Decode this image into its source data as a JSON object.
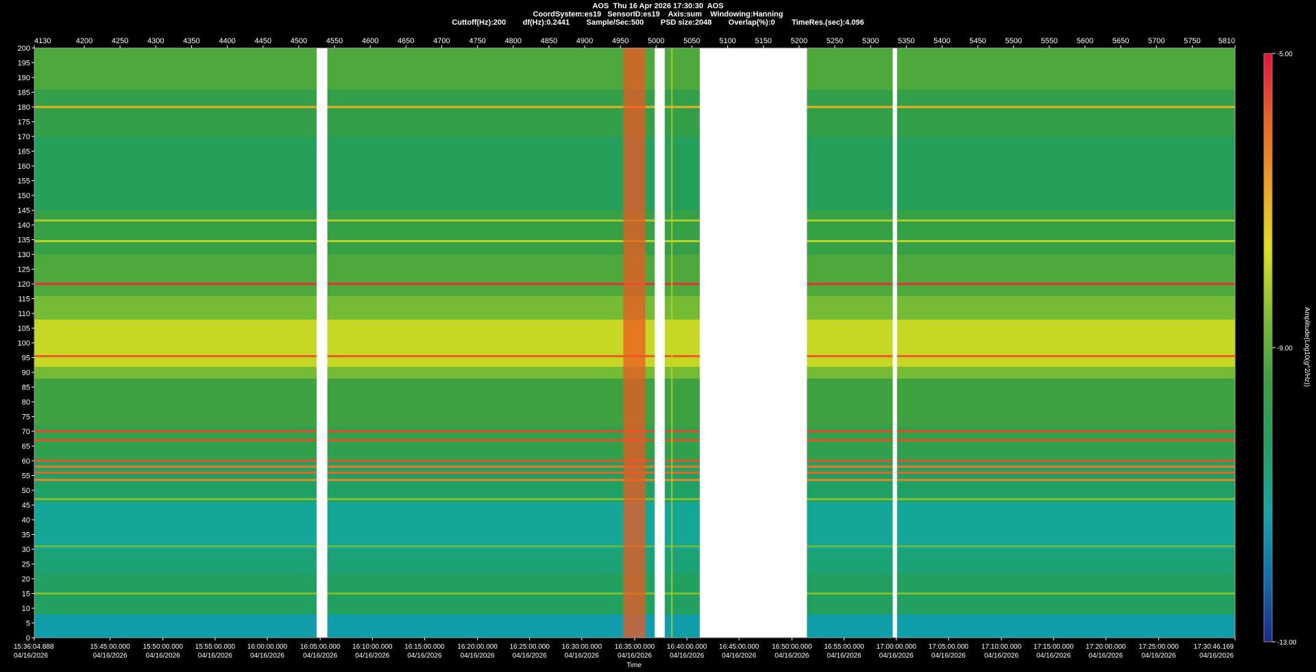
{
  "header": {
    "line1": "AOS  Thu 16 Apr 2026 17:30:30  AOS",
    "line2": "CoordSystem:es19   SensorID:es19    Axis:sum    Windowing:Hanning",
    "line3": "Cuttoff(Hz):200        df(Hz):0.2441        Sample/Sec:500        PSD size:2048        Overlap(%):0        TimeRes.(sec):4.096"
  },
  "colors": {
    "background": "#000000",
    "gap": "#ffffff",
    "scale": [
      "#1a2a8c",
      "#1070b0",
      "#10a8a8",
      "#20a060",
      "#3aa040",
      "#80c030",
      "#e0e020",
      "#f0a020",
      "#f06020",
      "#e81040"
    ]
  },
  "chart_data": {
    "type": "heatmap",
    "xlabel": "Time",
    "ylabel": "",
    "ylim": [
      0,
      200
    ],
    "y_ticks": [
      0,
      5,
      10,
      15,
      20,
      25,
      30,
      35,
      40,
      45,
      50,
      55,
      60,
      65,
      70,
      75,
      80,
      85,
      90,
      95,
      100,
      105,
      110,
      115,
      120,
      125,
      130,
      135,
      140,
      145,
      150,
      155,
      160,
      165,
      170,
      175,
      180,
      185,
      190,
      195,
      200
    ],
    "index_range": [
      4130,
      5810
    ],
    "top_ticks": [
      4130,
      4200,
      4250,
      4300,
      4350,
      4400,
      4450,
      4500,
      4550,
      4600,
      4650,
      4700,
      4750,
      4800,
      4850,
      4900,
      4950,
      5000,
      5050,
      5100,
      5150,
      5200,
      5250,
      5300,
      5350,
      5400,
      5450,
      5500,
      5550,
      5600,
      5650,
      5700,
      5750,
      5810
    ],
    "time_ticks": [
      {
        "index": 4130,
        "time": "15:36:04.888",
        "date": "04/16/2026"
      },
      {
        "index": 4236,
        "time": "15:45:00.000",
        "date": "04/16/2026"
      },
      {
        "index": 4310,
        "time": "15:50:00.000",
        "date": "04/16/2026"
      },
      {
        "index": 4383,
        "time": "15:55:00.000",
        "date": "04/16/2026"
      },
      {
        "index": 4456,
        "time": "16:00:00.000",
        "date": "04/16/2026"
      },
      {
        "index": 4530,
        "time": "16:05:00.000",
        "date": "04/16/2026"
      },
      {
        "index": 4603,
        "time": "16:10:00.000",
        "date": "04/16/2026"
      },
      {
        "index": 4676,
        "time": "16:15:00.000",
        "date": "04/16/2026"
      },
      {
        "index": 4750,
        "time": "16:20:00.000",
        "date": "04/16/2026"
      },
      {
        "index": 4823,
        "time": "16:25:00.000",
        "date": "04/16/2026"
      },
      {
        "index": 4896,
        "time": "16:30:00.000",
        "date": "04/16/2026"
      },
      {
        "index": 4970,
        "time": "16:35:00.000",
        "date": "04/16/2026"
      },
      {
        "index": 5043,
        "time": "16:40:00.000",
        "date": "04/16/2026"
      },
      {
        "index": 5116,
        "time": "16:45:00.000",
        "date": "04/16/2026"
      },
      {
        "index": 5190,
        "time": "16:50:00.000",
        "date": "04/16/2026"
      },
      {
        "index": 5263,
        "time": "16:55:00.000",
        "date": "04/16/2026"
      },
      {
        "index": 5336,
        "time": "17:00:00.000",
        "date": "04/16/2026"
      },
      {
        "index": 5409,
        "time": "17:05:00.000",
        "date": "04/16/2026"
      },
      {
        "index": 5483,
        "time": "17:10:00.000",
        "date": "04/16/2026"
      },
      {
        "index": 5556,
        "time": "17:15:00.000",
        "date": "04/16/2026"
      },
      {
        "index": 5629,
        "time": "17:20:00.000",
        "date": "04/16/2026"
      },
      {
        "index": 5703,
        "time": "17:25:00.000",
        "date": "04/16/2026"
      },
      {
        "index": 5810,
        "time": "17:30:46.169",
        "date": "04/16/2026"
      }
    ],
    "gaps": [
      [
        4525,
        4540
      ],
      [
        4998,
        5012
      ],
      [
        5061,
        5211
      ],
      [
        5331,
        5337
      ]
    ],
    "colorbar": {
      "label": "Amplitude(Log10(g^2/Hz))",
      "range": [
        -13,
        -5
      ],
      "ticks": [
        {
          "value": -5,
          "label": "-5.00"
        },
        {
          "value": -9,
          "label": "-9.00"
        },
        {
          "value": -13,
          "label": "-13.00"
        }
      ]
    },
    "bands": [
      {
        "from": 0,
        "to": 8,
        "value": -11.4
      },
      {
        "from": 8,
        "to": 22,
        "value": -10.3
      },
      {
        "from": 22,
        "to": 30,
        "value": -10.6
      },
      {
        "from": 30,
        "to": 46,
        "value": -11.0
      },
      {
        "from": 46,
        "to": 60,
        "value": -10.4
      },
      {
        "from": 60,
        "to": 72,
        "value": -9.8
      },
      {
        "from": 72,
        "to": 88,
        "value": -9.4
      },
      {
        "from": 88,
        "to": 92,
        "value": -8.7
      },
      {
        "from": 92,
        "to": 108,
        "value": -7.9
      },
      {
        "from": 108,
        "to": 116,
        "value": -8.7
      },
      {
        "from": 116,
        "to": 130,
        "value": -9.2
      },
      {
        "from": 130,
        "to": 145,
        "value": -9.6
      },
      {
        "from": 145,
        "to": 170,
        "value": -10.2
      },
      {
        "from": 170,
        "to": 186,
        "value": -9.7
      },
      {
        "from": 186,
        "to": 200,
        "value": -9.2
      }
    ],
    "lines": [
      {
        "freq": 180,
        "value": -7.0
      },
      {
        "freq": 141.5,
        "value": -8.2
      },
      {
        "freq": 134.5,
        "value": -8.0
      },
      {
        "freq": 120,
        "value": -5.3
      },
      {
        "freq": 95.5,
        "value": -5.8
      },
      {
        "freq": 70,
        "value": -5.6
      },
      {
        "freq": 67,
        "value": -5.7
      },
      {
        "freq": 60,
        "value": -5.7
      },
      {
        "freq": 58,
        "value": -6.2
      },
      {
        "freq": 56,
        "value": -5.9
      },
      {
        "freq": 53.5,
        "value": -6.4
      },
      {
        "freq": 47,
        "value": -8.5
      },
      {
        "freq": 31,
        "value": -8.8
      },
      {
        "freq": 15,
        "value": -8.6
      }
    ],
    "events": [
      {
        "index_from": 4954,
        "index_to": 4985,
        "value": -5.8
      },
      {
        "index_from": 5021,
        "index_to": 5023,
        "value": -8.0
      }
    ]
  }
}
